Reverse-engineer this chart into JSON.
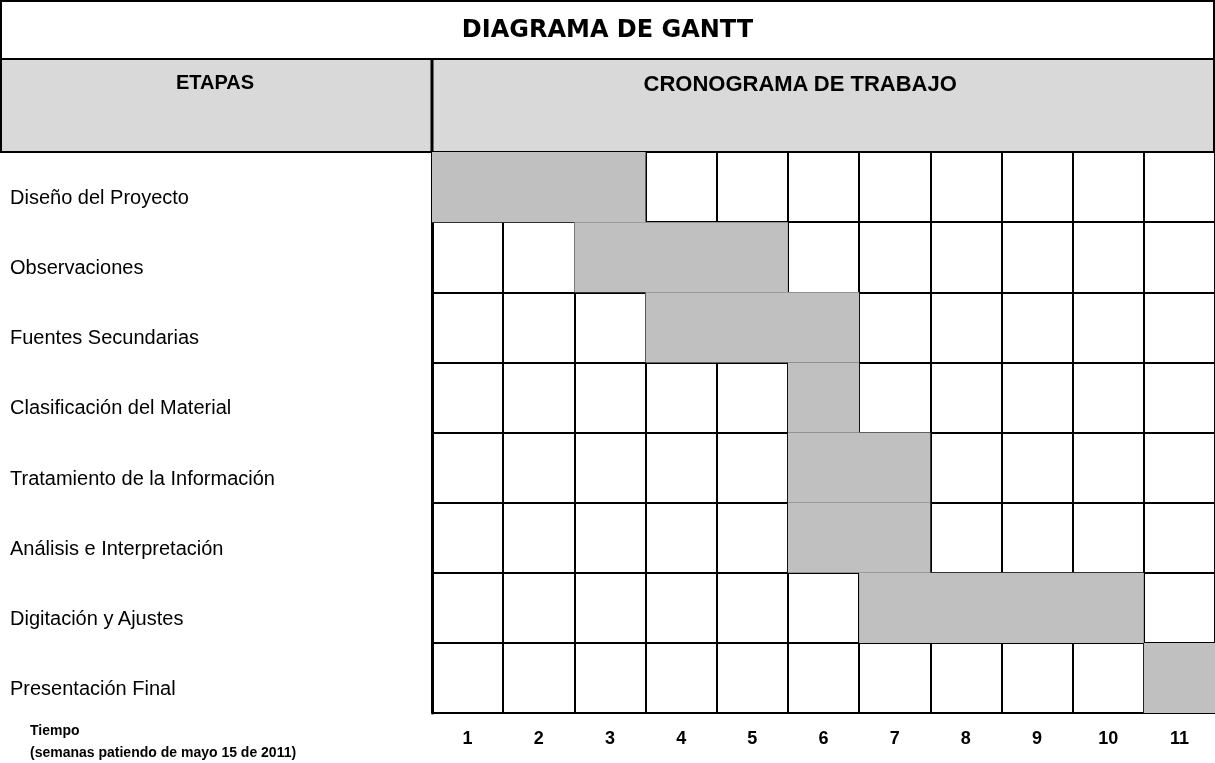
{
  "chart_data": {
    "type": "bar",
    "orientation": "horizontal",
    "title": "DIAGRAMA DE GANTT",
    "subtitle": "CRONOGRAMA DE TRABAJO",
    "ylabel": "ETAPAS",
    "xlabel": "Tiempo\n(semanas patiendo de mayo 15 de 2011)",
    "categories": [
      "Diseño del Proyecto",
      "Observaciones",
      "Fuentes Secundarias",
      "Clasificación del Material",
      "Tratamiento de la Información",
      "Análisis e Interpretación",
      "Digitación y Ajustes",
      "Presentación Final"
    ],
    "base": [
      0,
      2,
      3,
      5,
      5,
      5,
      6,
      10
    ],
    "values": [
      3,
      3,
      3,
      1,
      2,
      2,
      4,
      1
    ],
    "color": "#c0c0c0",
    "xlim": [
      0,
      11
    ],
    "xticks": [
      {
        "value": 0,
        "label": null
      },
      {
        "value": 0.5,
        "label": "1"
      },
      {
        "value": 1,
        "label": null
      },
      {
        "value": 1.5,
        "label": "2"
      },
      {
        "value": 2,
        "label": null
      },
      {
        "value": 2.5,
        "label": "3"
      },
      {
        "value": 3,
        "label": null
      },
      {
        "value": 3.5,
        "label": "4"
      },
      {
        "value": 4,
        "label": null
      },
      {
        "value": 4.5,
        "label": "5"
      },
      {
        "value": 5,
        "label": null
      },
      {
        "value": 5.5,
        "label": "6"
      },
      {
        "value": 6,
        "label": null
      },
      {
        "value": 6.5,
        "label": "7"
      },
      {
        "value": 7,
        "label": null
      },
      {
        "value": 7.5,
        "label": "8"
      },
      {
        "value": 8,
        "label": null
      },
      {
        "value": 8.5,
        "label": "9"
      },
      {
        "value": 9,
        "label": null
      },
      {
        "value": 9.5,
        "label": "10"
      },
      {
        "value": 10,
        "label": null
      },
      {
        "value": 10.5,
        "label": "11"
      },
      {
        "value": 11,
        "label": null
      }
    ],
    "grid": true
  }
}
